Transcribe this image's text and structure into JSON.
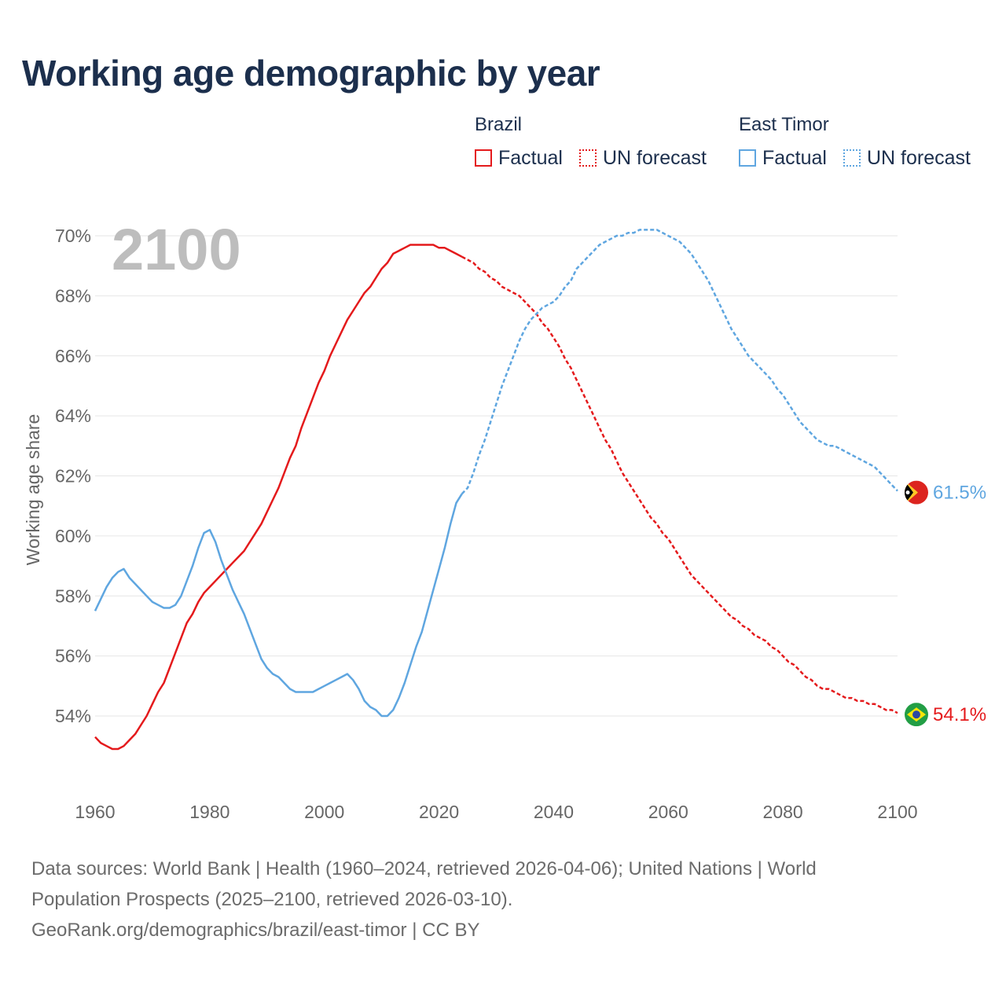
{
  "title": "Working age demographic by year",
  "legend": {
    "groups": [
      {
        "country": "Brazil",
        "factual_label": "Factual",
        "forecast_label": "UN forecast",
        "color": "#e41a1c"
      },
      {
        "country": "East Timor",
        "factual_label": "Factual",
        "forecast_label": "UN forecast",
        "color": "#5fa6e0"
      }
    ]
  },
  "sources": {
    "line1": "Data sources: World Bank | Health (1960–2024, retrieved 2026-04-06); United Nations | World",
    "line2": "Population Prospects (2025–2100, retrieved 2026-03-10).",
    "line3": "GeoRank.org/demographics/brazil/east-timor | CC BY"
  },
  "chart_data": {
    "type": "line",
    "title": "Working age demographic by year",
    "year_overlay": "2100",
    "xlabel": "",
    "ylabel": "Working age share",
    "xlim": [
      1960,
      2100
    ],
    "ylim": [
      52,
      70.5
    ],
    "x_ticks": [
      1960,
      1980,
      2000,
      2020,
      2040,
      2060,
      2080,
      2100
    ],
    "x_tick_labels": [
      "1960",
      "1980",
      "2000",
      "2020",
      "2040",
      "2060",
      "2080",
      "2100"
    ],
    "y_ticks": [
      54,
      56,
      58,
      60,
      62,
      64,
      66,
      68,
      70
    ],
    "y_tick_labels": [
      "54%",
      "56%",
      "58%",
      "60%",
      "62%",
      "64%",
      "66%",
      "68%",
      "70%"
    ],
    "grid": true,
    "series": [
      {
        "name": "Brazil",
        "color": "#e41a1c",
        "end_label": "54.1%",
        "flag": "brazil-flag",
        "factual": [
          [
            1960,
            53.3
          ],
          [
            1961,
            53.1
          ],
          [
            1962,
            53.0
          ],
          [
            1963,
            52.9
          ],
          [
            1964,
            52.9
          ],
          [
            1965,
            53.0
          ],
          [
            1966,
            53.2
          ],
          [
            1967,
            53.4
          ],
          [
            1968,
            53.7
          ],
          [
            1969,
            54.0
          ],
          [
            1970,
            54.4
          ],
          [
            1971,
            54.8
          ],
          [
            1972,
            55.1
          ],
          [
            1973,
            55.6
          ],
          [
            1974,
            56.1
          ],
          [
            1975,
            56.6
          ],
          [
            1976,
            57.1
          ],
          [
            1977,
            57.4
          ],
          [
            1978,
            57.8
          ],
          [
            1979,
            58.1
          ],
          [
            1980,
            58.3
          ],
          [
            1981,
            58.5
          ],
          [
            1982,
            58.7
          ],
          [
            1983,
            58.9
          ],
          [
            1984,
            59.1
          ],
          [
            1985,
            59.3
          ],
          [
            1986,
            59.5
          ],
          [
            1987,
            59.8
          ],
          [
            1988,
            60.1
          ],
          [
            1989,
            60.4
          ],
          [
            1990,
            60.8
          ],
          [
            1991,
            61.2
          ],
          [
            1992,
            61.6
          ],
          [
            1993,
            62.1
          ],
          [
            1994,
            62.6
          ],
          [
            1995,
            63.0
          ],
          [
            1996,
            63.6
          ],
          [
            1997,
            64.1
          ],
          [
            1998,
            64.6
          ],
          [
            1999,
            65.1
          ],
          [
            2000,
            65.5
          ],
          [
            2001,
            66.0
          ],
          [
            2002,
            66.4
          ],
          [
            2003,
            66.8
          ],
          [
            2004,
            67.2
          ],
          [
            2005,
            67.5
          ],
          [
            2006,
            67.8
          ],
          [
            2007,
            68.1
          ],
          [
            2008,
            68.3
          ],
          [
            2009,
            68.6
          ],
          [
            2010,
            68.9
          ],
          [
            2011,
            69.1
          ],
          [
            2012,
            69.4
          ],
          [
            2013,
            69.5
          ],
          [
            2014,
            69.6
          ],
          [
            2015,
            69.7
          ],
          [
            2016,
            69.7
          ],
          [
            2017,
            69.7
          ],
          [
            2018,
            69.7
          ],
          [
            2019,
            69.7
          ],
          [
            2020,
            69.6
          ],
          [
            2021,
            69.6
          ],
          [
            2022,
            69.5
          ],
          [
            2023,
            69.4
          ],
          [
            2024,
            69.3
          ]
        ],
        "forecast": [
          [
            2024,
            69.3
          ],
          [
            2025,
            69.2
          ],
          [
            2026,
            69.1
          ],
          [
            2027,
            68.9
          ],
          [
            2028,
            68.8
          ],
          [
            2029,
            68.6
          ],
          [
            2030,
            68.5
          ],
          [
            2031,
            68.3
          ],
          [
            2032,
            68.2
          ],
          [
            2033,
            68.1
          ],
          [
            2034,
            68.0
          ],
          [
            2035,
            67.8
          ],
          [
            2036,
            67.6
          ],
          [
            2037,
            67.4
          ],
          [
            2038,
            67.1
          ],
          [
            2039,
            66.9
          ],
          [
            2040,
            66.6
          ],
          [
            2041,
            66.3
          ],
          [
            2042,
            65.9
          ],
          [
            2043,
            65.6
          ],
          [
            2044,
            65.2
          ],
          [
            2045,
            64.8
          ],
          [
            2046,
            64.4
          ],
          [
            2047,
            64.0
          ],
          [
            2048,
            63.6
          ],
          [
            2049,
            63.2
          ],
          [
            2050,
            62.9
          ],
          [
            2051,
            62.5
          ],
          [
            2052,
            62.1
          ],
          [
            2053,
            61.8
          ],
          [
            2054,
            61.5
          ],
          [
            2055,
            61.2
          ],
          [
            2056,
            60.9
          ],
          [
            2057,
            60.6
          ],
          [
            2058,
            60.4
          ],
          [
            2059,
            60.1
          ],
          [
            2060,
            59.9
          ],
          [
            2061,
            59.6
          ],
          [
            2062,
            59.3
          ],
          [
            2063,
            59.0
          ],
          [
            2064,
            58.7
          ],
          [
            2065,
            58.5
          ],
          [
            2066,
            58.3
          ],
          [
            2067,
            58.1
          ],
          [
            2068,
            57.9
          ],
          [
            2069,
            57.7
          ],
          [
            2070,
            57.5
          ],
          [
            2071,
            57.3
          ],
          [
            2072,
            57.2
          ],
          [
            2073,
            57.0
          ],
          [
            2074,
            56.9
          ],
          [
            2075,
            56.7
          ],
          [
            2076,
            56.6
          ],
          [
            2077,
            56.5
          ],
          [
            2078,
            56.3
          ],
          [
            2079,
            56.2
          ],
          [
            2080,
            56.0
          ],
          [
            2081,
            55.8
          ],
          [
            2082,
            55.7
          ],
          [
            2083,
            55.5
          ],
          [
            2084,
            55.3
          ],
          [
            2085,
            55.2
          ],
          [
            2086,
            55.0
          ],
          [
            2087,
            54.9
          ],
          [
            2088,
            54.9
          ],
          [
            2089,
            54.8
          ],
          [
            2090,
            54.7
          ],
          [
            2091,
            54.6
          ],
          [
            2092,
            54.6
          ],
          [
            2093,
            54.5
          ],
          [
            2094,
            54.5
          ],
          [
            2095,
            54.4
          ],
          [
            2096,
            54.4
          ],
          [
            2097,
            54.3
          ],
          [
            2098,
            54.2
          ],
          [
            2099,
            54.2
          ],
          [
            2100,
            54.1
          ]
        ]
      },
      {
        "name": "East Timor",
        "color": "#5fa6e0",
        "end_label": "61.5%",
        "flag": "east-timor-flag",
        "factual": [
          [
            1960,
            57.5
          ],
          [
            1961,
            57.9
          ],
          [
            1962,
            58.3
          ],
          [
            1963,
            58.6
          ],
          [
            1964,
            58.8
          ],
          [
            1965,
            58.9
          ],
          [
            1966,
            58.6
          ],
          [
            1967,
            58.4
          ],
          [
            1968,
            58.2
          ],
          [
            1969,
            58.0
          ],
          [
            1970,
            57.8
          ],
          [
            1971,
            57.7
          ],
          [
            1972,
            57.6
          ],
          [
            1973,
            57.6
          ],
          [
            1974,
            57.7
          ],
          [
            1975,
            58.0
          ],
          [
            1976,
            58.5
          ],
          [
            1977,
            59.0
          ],
          [
            1978,
            59.6
          ],
          [
            1979,
            60.1
          ],
          [
            1980,
            60.2
          ],
          [
            1981,
            59.8
          ],
          [
            1982,
            59.2
          ],
          [
            1983,
            58.7
          ],
          [
            1984,
            58.2
          ],
          [
            1985,
            57.8
          ],
          [
            1986,
            57.4
          ],
          [
            1987,
            56.9
          ],
          [
            1988,
            56.4
          ],
          [
            1989,
            55.9
          ],
          [
            1990,
            55.6
          ],
          [
            1991,
            55.4
          ],
          [
            1992,
            55.3
          ],
          [
            1993,
            55.1
          ],
          [
            1994,
            54.9
          ],
          [
            1995,
            54.8
          ],
          [
            1996,
            54.8
          ],
          [
            1997,
            54.8
          ],
          [
            1998,
            54.8
          ],
          [
            1999,
            54.9
          ],
          [
            2000,
            55.0
          ],
          [
            2001,
            55.1
          ],
          [
            2002,
            55.2
          ],
          [
            2003,
            55.3
          ],
          [
            2004,
            55.4
          ],
          [
            2005,
            55.2
          ],
          [
            2006,
            54.9
          ],
          [
            2007,
            54.5
          ],
          [
            2008,
            54.3
          ],
          [
            2009,
            54.2
          ],
          [
            2010,
            54.0
          ],
          [
            2011,
            54.0
          ],
          [
            2012,
            54.2
          ],
          [
            2013,
            54.6
          ],
          [
            2014,
            55.1
          ],
          [
            2015,
            55.7
          ],
          [
            2016,
            56.3
          ],
          [
            2017,
            56.8
          ],
          [
            2018,
            57.5
          ],
          [
            2019,
            58.2
          ],
          [
            2020,
            58.9
          ],
          [
            2021,
            59.6
          ],
          [
            2022,
            60.4
          ],
          [
            2023,
            61.1
          ],
          [
            2024,
            61.4
          ]
        ],
        "forecast": [
          [
            2024,
            61.4
          ],
          [
            2025,
            61.6
          ],
          [
            2026,
            62.1
          ],
          [
            2027,
            62.7
          ],
          [
            2028,
            63.2
          ],
          [
            2029,
            63.8
          ],
          [
            2030,
            64.4
          ],
          [
            2031,
            65.0
          ],
          [
            2032,
            65.5
          ],
          [
            2033,
            66.0
          ],
          [
            2034,
            66.5
          ],
          [
            2035,
            66.9
          ],
          [
            2036,
            67.2
          ],
          [
            2037,
            67.4
          ],
          [
            2038,
            67.6
          ],
          [
            2039,
            67.7
          ],
          [
            2040,
            67.8
          ],
          [
            2041,
            68.0
          ],
          [
            2042,
            68.3
          ],
          [
            2043,
            68.5
          ],
          [
            2044,
            68.9
          ],
          [
            2045,
            69.1
          ],
          [
            2046,
            69.3
          ],
          [
            2047,
            69.5
          ],
          [
            2048,
            69.7
          ],
          [
            2049,
            69.8
          ],
          [
            2050,
            69.9
          ],
          [
            2051,
            70.0
          ],
          [
            2052,
            70.0
          ],
          [
            2053,
            70.1
          ],
          [
            2054,
            70.1
          ],
          [
            2055,
            70.2
          ],
          [
            2056,
            70.2
          ],
          [
            2057,
            70.2
          ],
          [
            2058,
            70.2
          ],
          [
            2059,
            70.1
          ],
          [
            2060,
            70.0
          ],
          [
            2061,
            69.9
          ],
          [
            2062,
            69.8
          ],
          [
            2063,
            69.6
          ],
          [
            2064,
            69.4
          ],
          [
            2065,
            69.1
          ],
          [
            2066,
            68.8
          ],
          [
            2067,
            68.5
          ],
          [
            2068,
            68.1
          ],
          [
            2069,
            67.7
          ],
          [
            2070,
            67.3
          ],
          [
            2071,
            66.9
          ],
          [
            2072,
            66.6
          ],
          [
            2073,
            66.3
          ],
          [
            2074,
            66.0
          ],
          [
            2075,
            65.8
          ],
          [
            2076,
            65.6
          ],
          [
            2077,
            65.4
          ],
          [
            2078,
            65.2
          ],
          [
            2079,
            64.9
          ],
          [
            2080,
            64.7
          ],
          [
            2081,
            64.4
          ],
          [
            2082,
            64.1
          ],
          [
            2083,
            63.8
          ],
          [
            2084,
            63.6
          ],
          [
            2085,
            63.4
          ],
          [
            2086,
            63.2
          ],
          [
            2087,
            63.1
          ],
          [
            2088,
            63.0
          ],
          [
            2089,
            63.0
          ],
          [
            2090,
            62.9
          ],
          [
            2091,
            62.8
          ],
          [
            2092,
            62.7
          ],
          [
            2093,
            62.6
          ],
          [
            2094,
            62.5
          ],
          [
            2095,
            62.4
          ],
          [
            2096,
            62.3
          ],
          [
            2097,
            62.1
          ],
          [
            2098,
            61.9
          ],
          [
            2099,
            61.7
          ],
          [
            2100,
            61.5
          ]
        ]
      }
    ]
  }
}
